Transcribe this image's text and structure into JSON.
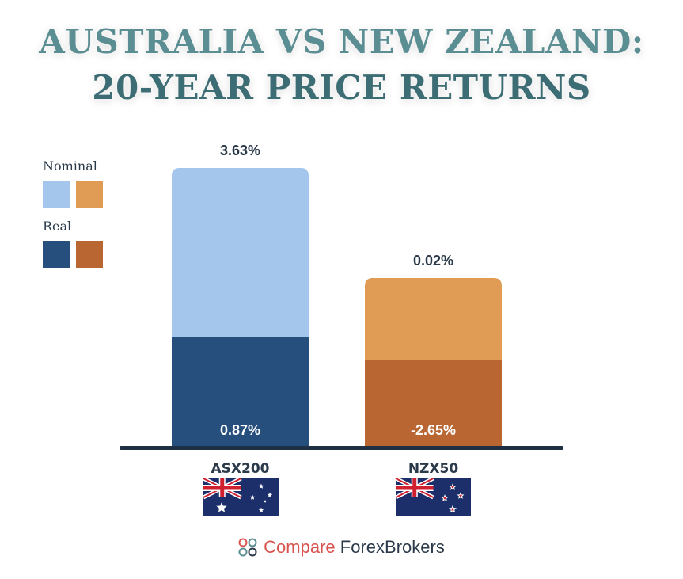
{
  "title": {
    "line1": "AUSTRALIA VS NEW ZEALAND:",
    "line2": "20-YEAR PRICE RETURNS"
  },
  "legend": {
    "nominal_label": "Nominal",
    "real_label": "Real"
  },
  "colors": {
    "asx_nominal": "#a5c6ec",
    "asx_real": "#274f7e",
    "nzx_nominal": "#e09c55",
    "nzx_real": "#b96632",
    "baseline": "#1f2f44",
    "label_dark": "#2b3a4a",
    "label_light": "#ffffff"
  },
  "chart_data": {
    "type": "bar",
    "categories": [
      "ASX200",
      "NZX50"
    ],
    "series": [
      {
        "name": "Nominal",
        "values": [
          3.63,
          0.02
        ],
        "labels": [
          "3.63%",
          "0.02%"
        ]
      },
      {
        "name": "Real",
        "values": [
          0.87,
          -2.65
        ],
        "labels": [
          "0.87%",
          "-2.65%"
        ]
      }
    ]
  },
  "flags": [
    "australia-flag-icon",
    "new-zealand-flag-icon"
  ],
  "footer": {
    "brand_icon": "compare-forex-brokers-logo-icon",
    "compare": "Compare",
    "forex": "Forex",
    "brokers": "Brokers"
  }
}
